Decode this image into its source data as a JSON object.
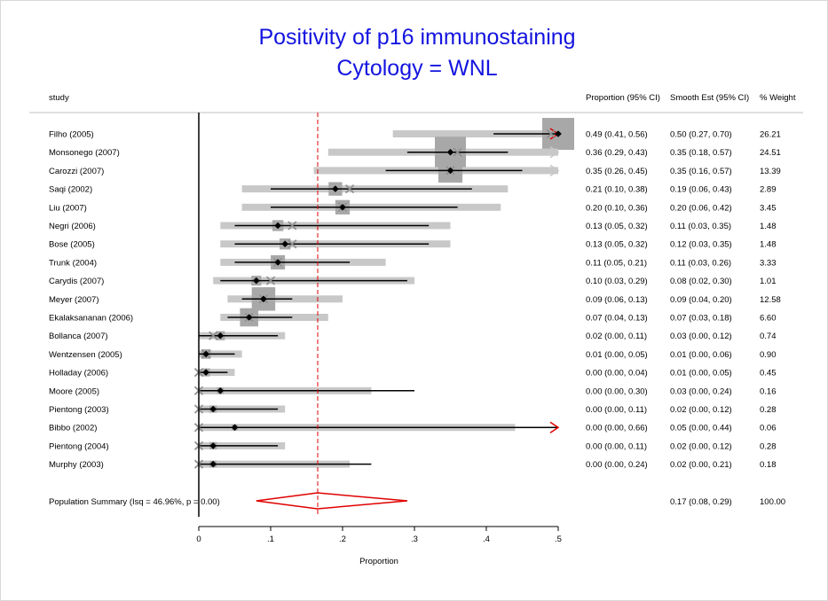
{
  "chart_data": {
    "type": "forest",
    "title": "Positivity of p16 immunostaining",
    "subtitle": "Cytology = WNL",
    "xlabel": "Proportion",
    "xlim": [
      0,
      0.5
    ],
    "xticks": [
      {
        "value": 0,
        "label": "0"
      },
      {
        "value": 0.1,
        "label": ".1"
      },
      {
        "value": 0.2,
        "label": ".2"
      },
      {
        "value": 0.3,
        "label": ".3"
      },
      {
        "value": 0.4,
        "label": ".4"
      },
      {
        "value": 0.5,
        "label": ".5"
      }
    ],
    "column_headers": {
      "study": "study",
      "proportion": "Proportion (95% CI)",
      "smooth": "Smooth Est (95% CI)",
      "weight": "% Weight"
    },
    "studies": [
      {
        "study": "Filho (2005)",
        "proportion_text": "0.49 (0.41, 0.56)",
        "smooth_text": "0.50 (0.27, 0.70)",
        "weight_text": "26.21",
        "p": 0.49,
        "lo": 0.41,
        "hi": 0.56,
        "s": 0.5,
        "slo": 0.27,
        "shi": 0.7,
        "w": 26.21
      },
      {
        "study": "Monsonego (2007)",
        "proportion_text": "0.36 (0.29, 0.43)",
        "smooth_text": "0.35 (0.18, 0.57)",
        "weight_text": "24.51",
        "p": 0.36,
        "lo": 0.29,
        "hi": 0.43,
        "s": 0.35,
        "slo": 0.18,
        "shi": 0.57,
        "w": 24.51
      },
      {
        "study": "Carozzi (2007)",
        "proportion_text": "0.35 (0.26, 0.45)",
        "smooth_text": "0.35 (0.16, 0.57)",
        "weight_text": "13.39",
        "p": 0.35,
        "lo": 0.26,
        "hi": 0.45,
        "s": 0.35,
        "slo": 0.16,
        "shi": 0.57,
        "w": 13.39
      },
      {
        "study": "Saqi (2002)",
        "proportion_text": "0.21 (0.10, 0.38)",
        "smooth_text": "0.19 (0.06, 0.43)",
        "weight_text": "2.89",
        "p": 0.21,
        "lo": 0.1,
        "hi": 0.38,
        "s": 0.19,
        "slo": 0.06,
        "shi": 0.43,
        "w": 2.89
      },
      {
        "study": "Liu (2007)",
        "proportion_text": "0.20 (0.10, 0.36)",
        "smooth_text": "0.20 (0.06, 0.42)",
        "weight_text": "3.45",
        "p": 0.2,
        "lo": 0.1,
        "hi": 0.36,
        "s": 0.2,
        "slo": 0.06,
        "shi": 0.42,
        "w": 3.45
      },
      {
        "study": "Negri (2006)",
        "proportion_text": "0.13 (0.05, 0.32)",
        "smooth_text": "0.11 (0.03, 0.35)",
        "weight_text": "1.48",
        "p": 0.13,
        "lo": 0.05,
        "hi": 0.32,
        "s": 0.11,
        "slo": 0.03,
        "shi": 0.35,
        "w": 1.48
      },
      {
        "study": "Bose (2005)",
        "proportion_text": "0.13 (0.05, 0.32)",
        "smooth_text": "0.12 (0.03, 0.35)",
        "weight_text": "1.48",
        "p": 0.13,
        "lo": 0.05,
        "hi": 0.32,
        "s": 0.12,
        "slo": 0.03,
        "shi": 0.35,
        "w": 1.48
      },
      {
        "study": "Trunk (2004)",
        "proportion_text": "0.11 (0.05, 0.21)",
        "smooth_text": "0.11 (0.03, 0.26)",
        "weight_text": "3.33",
        "p": 0.11,
        "lo": 0.05,
        "hi": 0.21,
        "s": 0.11,
        "slo": 0.03,
        "shi": 0.26,
        "w": 3.33
      },
      {
        "study": "Carydis (2007)",
        "proportion_text": "0.10 (0.03, 0.29)",
        "smooth_text": "0.08 (0.02, 0.30)",
        "weight_text": "1.01",
        "p": 0.1,
        "lo": 0.03,
        "hi": 0.29,
        "s": 0.08,
        "slo": 0.02,
        "shi": 0.3,
        "w": 1.01
      },
      {
        "study": "Meyer (2007)",
        "proportion_text": "0.09 (0.06, 0.13)",
        "smooth_text": "0.09 (0.04, 0.20)",
        "weight_text": "12.58",
        "p": 0.09,
        "lo": 0.06,
        "hi": 0.13,
        "s": 0.09,
        "slo": 0.04,
        "shi": 0.2,
        "w": 12.58
      },
      {
        "study": "Ekalaksananan (2006)",
        "proportion_text": "0.07 (0.04, 0.13)",
        "smooth_text": "0.07 (0.03, 0.18)",
        "weight_text": "6.60",
        "p": 0.07,
        "lo": 0.04,
        "hi": 0.13,
        "s": 0.07,
        "slo": 0.03,
        "shi": 0.18,
        "w": 6.6
      },
      {
        "study": "Bollanca (2007)",
        "proportion_text": "0.02 (0.00, 0.11)",
        "smooth_text": "0.03 (0.00, 0.12)",
        "weight_text": "0.74",
        "p": 0.02,
        "lo": 0.0,
        "hi": 0.11,
        "s": 0.03,
        "slo": 0.0,
        "shi": 0.12,
        "w": 0.74
      },
      {
        "study": "Wentzensen (2005)",
        "proportion_text": "0.01 (0.00, 0.05)",
        "smooth_text": "0.01 (0.00, 0.06)",
        "weight_text": "0.90",
        "p": 0.01,
        "lo": 0.0,
        "hi": 0.05,
        "s": 0.01,
        "slo": 0.0,
        "shi": 0.06,
        "w": 0.9
      },
      {
        "study": "Holladay (2006)",
        "proportion_text": "0.00 (0.00, 0.04)",
        "smooth_text": "0.01 (0.00, 0.05)",
        "weight_text": "0.45",
        "p": 0.0,
        "lo": 0.0,
        "hi": 0.04,
        "s": 0.01,
        "slo": 0.0,
        "shi": 0.05,
        "w": 0.45
      },
      {
        "study": "Moore (2005)",
        "proportion_text": "0.00 (0.00, 0.30)",
        "smooth_text": "0.03 (0.00, 0.24)",
        "weight_text": "0.16",
        "p": 0.0,
        "lo": 0.0,
        "hi": 0.3,
        "s": 0.03,
        "slo": 0.0,
        "shi": 0.24,
        "w": 0.16
      },
      {
        "study": "Pientong (2003)",
        "proportion_text": "0.00 (0.00, 0.11)",
        "smooth_text": "0.02 (0.00, 0.12)",
        "weight_text": "0.28",
        "p": 0.0,
        "lo": 0.0,
        "hi": 0.11,
        "s": 0.02,
        "slo": 0.0,
        "shi": 0.12,
        "w": 0.28
      },
      {
        "study": "Bibbo (2002)",
        "proportion_text": "0.00 (0.00, 0.66)",
        "smooth_text": "0.05 (0.00, 0.44)",
        "weight_text": "0.06",
        "p": 0.0,
        "lo": 0.0,
        "hi": 0.66,
        "s": 0.05,
        "slo": 0.0,
        "shi": 0.44,
        "w": 0.06
      },
      {
        "study": "Pientong (2004)",
        "proportion_text": "0.00 (0.00, 0.11)",
        "smooth_text": "0.02 (0.00, 0.12)",
        "weight_text": "0.28",
        "p": 0.0,
        "lo": 0.0,
        "hi": 0.11,
        "s": 0.02,
        "slo": 0.0,
        "shi": 0.12,
        "w": 0.28
      },
      {
        "study": "Murphy (2003)",
        "proportion_text": "0.00 (0.00, 0.24)",
        "smooth_text": "0.02 (0.00, 0.21)",
        "weight_text": "0.18",
        "p": 0.0,
        "lo": 0.0,
        "hi": 0.24,
        "s": 0.02,
        "slo": 0.0,
        "shi": 0.21,
        "w": 0.18
      }
    ],
    "summary": {
      "label": "Population Summary (Isq = 46.96%, p = 0.00)",
      "smooth_text": "0.17 (0.08, 0.29)",
      "weight_text": "100.00",
      "est": 0.165,
      "lo": 0.08,
      "hi": 0.29
    },
    "colors": {
      "title": "#1414e0",
      "summary": "#e00000",
      "ci_band": "#c8c8c8",
      "weight_box": "#a8a8a8",
      "marker": "#000000",
      "cross": "#909090"
    }
  }
}
